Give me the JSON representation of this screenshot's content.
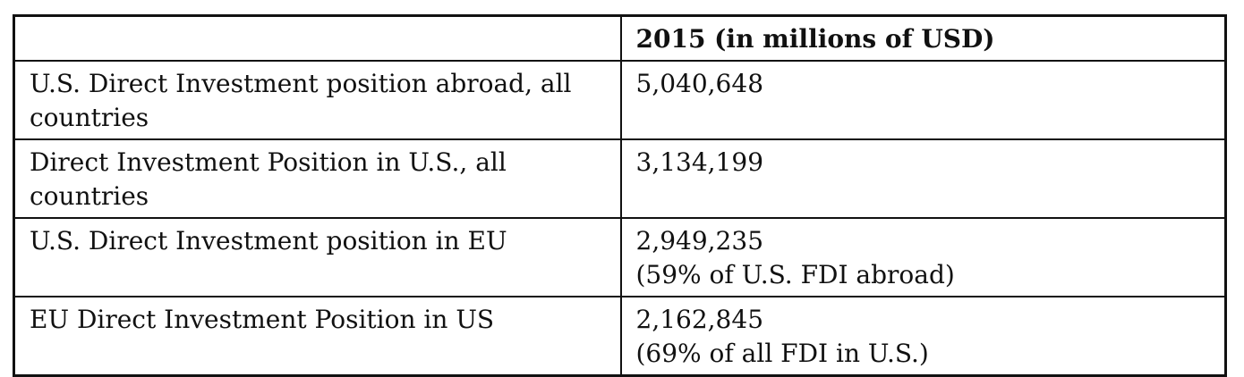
{
  "table": {
    "header": {
      "label": "",
      "value": "2015 (in millions of USD)"
    },
    "rows": [
      {
        "label": "U.S. Direct Investment position abroad, all countries",
        "value": "5,040,648",
        "note": ""
      },
      {
        "label": "Direct Investment Position in U.S., all countries",
        "value": "3,134,199",
        "note": ""
      },
      {
        "label": "U.S. Direct Investment position in EU",
        "value": "2,949,235",
        "note": "(59% of U.S. FDI abroad)"
      },
      {
        "label": "EU Direct Investment Position in US",
        "value": "2,162,845",
        "note": "(69% of all FDI in U.S.)"
      }
    ]
  }
}
